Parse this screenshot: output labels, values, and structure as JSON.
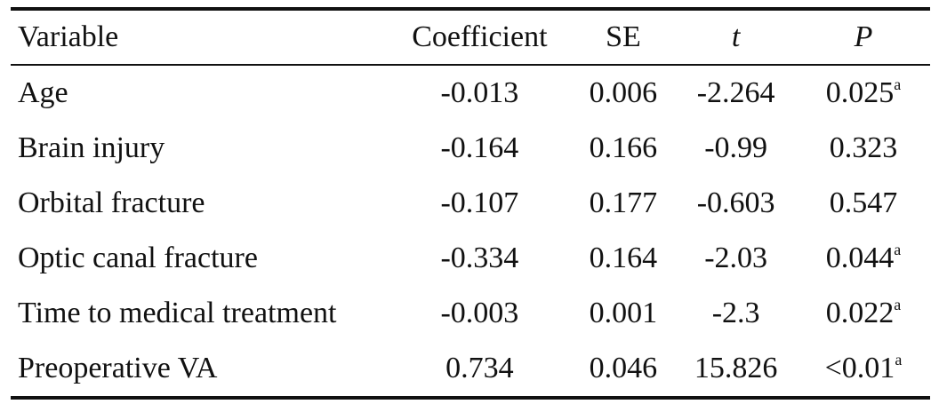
{
  "table": {
    "headers": {
      "variable": "Variable",
      "coefficient": "Coefficient",
      "se": "SE",
      "t": "t",
      "p": "P"
    },
    "rows": [
      {
        "variable": "Age",
        "coefficient": "-0.013",
        "se": "0.006",
        "t": "-2.264",
        "p": "0.025",
        "p_note": "a"
      },
      {
        "variable": "Brain injury",
        "coefficient": "-0.164",
        "se": "0.166",
        "t": "-0.99",
        "p": "0.323",
        "p_note": ""
      },
      {
        "variable": "Orbital fracture",
        "coefficient": "-0.107",
        "se": "0.177",
        "t": "-0.603",
        "p": "0.547",
        "p_note": ""
      },
      {
        "variable": "Optic canal fracture",
        "coefficient": "-0.334",
        "se": "0.164",
        "t": "-2.03",
        "p": "0.044",
        "p_note": "a"
      },
      {
        "variable": "Time to medical treatment",
        "coefficient": "-0.003",
        "se": "0.001",
        "t": "-2.3",
        "p": "0.022",
        "p_note": "a"
      },
      {
        "variable": "Preoperative VA",
        "coefficient": "0.734",
        "se": "0.046",
        "t": "15.826",
        "p": "<0.01",
        "p_note": "a"
      }
    ]
  }
}
